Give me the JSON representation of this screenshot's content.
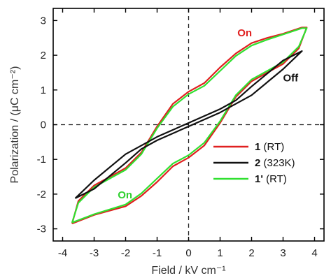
{
  "chart_data": {
    "type": "line",
    "xlabel": "Field / kV cm⁻¹",
    "ylabel": "Polarization / (μC cm⁻²)",
    "xlim": [
      -4.3,
      4.3
    ],
    "ylim": [
      -3.35,
      3.35
    ],
    "xticks": [
      -4,
      -3,
      -2,
      -1,
      0,
      1,
      2,
      3,
      4
    ],
    "yticks": [
      -3,
      -2,
      -1,
      0,
      1,
      2,
      3
    ],
    "x_tick_labels": [
      "-4",
      "-3",
      "-2",
      "-1",
      "0",
      "1",
      "2",
      "3",
      "4"
    ],
    "y_tick_labels": [
      "-3",
      "-2",
      "-1",
      "0",
      "1",
      "2",
      "3"
    ],
    "reference_lines": {
      "horizontal_y": 0,
      "vertical_x": 0,
      "style": "dashed"
    },
    "legend_placement": "lower-right",
    "series": [
      {
        "name_bold": "1",
        "name_rest": " (RT)",
        "color": "#e02020",
        "x": [
          -3.7,
          -3.0,
          -2.0,
          -1.5,
          -1.0,
          -0.5,
          0.0,
          0.5,
          1.0,
          1.5,
          2.0,
          2.5,
          3.0,
          3.5,
          3.75,
          3.6,
          3.0,
          2.5,
          2.0,
          1.5,
          1.0,
          0.5,
          0.0,
          -0.5,
          -1.0,
          -1.5,
          -2.0,
          -2.5,
          -3.0,
          -3.5,
          -3.7
        ],
        "y": [
          -2.85,
          -2.6,
          -2.35,
          -2.05,
          -1.65,
          -1.2,
          -0.95,
          -0.6,
          0.05,
          0.8,
          1.25,
          1.5,
          1.75,
          2.2,
          2.8,
          2.8,
          2.62,
          2.5,
          2.35,
          2.05,
          1.65,
          1.2,
          0.95,
          0.6,
          -0.05,
          -0.8,
          -1.25,
          -1.5,
          -1.75,
          -2.2,
          -2.85
        ]
      },
      {
        "name_bold": "1'",
        "name_rest": " (RT)",
        "color": "#30e030",
        "x": [
          -3.7,
          -3.0,
          -2.0,
          -1.5,
          -1.0,
          -0.5,
          0.0,
          0.5,
          1.0,
          1.5,
          2.0,
          2.5,
          3.0,
          3.5,
          3.75,
          3.6,
          3.0,
          2.5,
          2.0,
          1.5,
          1.0,
          0.5,
          0.0,
          -0.5,
          -1.0,
          -1.5,
          -2.0,
          -2.5,
          -3.0,
          -3.5,
          -3.7
        ],
        "y": [
          -2.82,
          -2.58,
          -2.3,
          -1.98,
          -1.55,
          -1.12,
          -0.88,
          -0.52,
          0.1,
          0.85,
          1.3,
          1.55,
          1.8,
          2.25,
          2.78,
          2.78,
          2.6,
          2.45,
          2.28,
          1.98,
          1.55,
          1.12,
          0.88,
          0.52,
          -0.1,
          -0.85,
          -1.3,
          -1.55,
          -1.8,
          -2.25,
          -2.82
        ]
      },
      {
        "name_bold": "2",
        "name_rest": " (323K)",
        "color": "#111111",
        "x": [
          -3.6,
          -3.0,
          -2.0,
          -1.5,
          -1.0,
          0.0,
          1.0,
          1.3,
          2.0,
          3.0,
          3.6,
          3.0,
          2.0,
          1.5,
          1.0,
          0.0,
          -1.0,
          -1.3,
          -2.0,
          -3.0,
          -3.6
        ],
        "y": [
          -2.12,
          -1.85,
          -1.1,
          -0.7,
          -0.45,
          -0.05,
          0.35,
          0.5,
          0.85,
          1.6,
          2.12,
          1.85,
          1.1,
          0.7,
          0.45,
          0.05,
          -0.35,
          -0.5,
          -0.85,
          -1.6,
          -2.12
        ]
      }
    ],
    "annotations": [
      {
        "text": "On",
        "x": 1.55,
        "y": 2.55,
        "color": "#e02020"
      },
      {
        "text": "Off",
        "x": 3.0,
        "y": 1.25,
        "color": "#111111"
      },
      {
        "text": "On",
        "x": -2.25,
        "y": -2.12,
        "color": "#30d030"
      }
    ]
  }
}
